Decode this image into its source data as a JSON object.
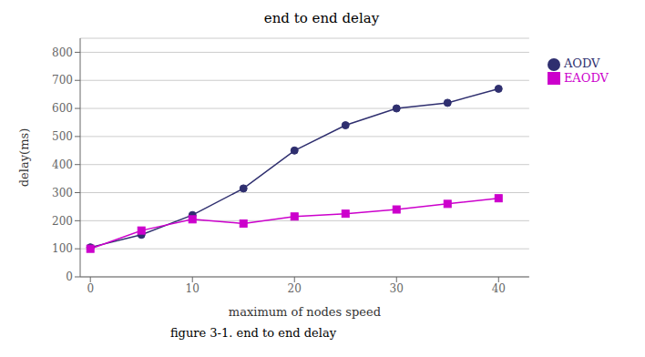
{
  "chart_data": {
    "type": "line",
    "title": "end to end delay",
    "xlabel": "maximum of nodes speed",
    "ylabel": "delay(ms)",
    "caption": "figure 3-1. end to end delay",
    "x": [
      0,
      5,
      10,
      15,
      20,
      25,
      30,
      35,
      40
    ],
    "series": [
      {
        "name": "AODV",
        "color": "#2F2F6F",
        "marker": "circle",
        "values": [
          105,
          150,
          220,
          315,
          450,
          540,
          600,
          620,
          670
        ]
      },
      {
        "name": "EAODV",
        "color": "#CC00CC",
        "marker": "square",
        "values": [
          100,
          165,
          205,
          190,
          215,
          225,
          240,
          260,
          280
        ]
      }
    ],
    "xlim": [
      -1,
      43
    ],
    "xticks": [
      0,
      10,
      20,
      30,
      40
    ],
    "ylim": [
      0,
      850
    ],
    "yticks": [
      0,
      100,
      200,
      300,
      400,
      500,
      600,
      700,
      800
    ],
    "grid": true,
    "legend": "right"
  }
}
